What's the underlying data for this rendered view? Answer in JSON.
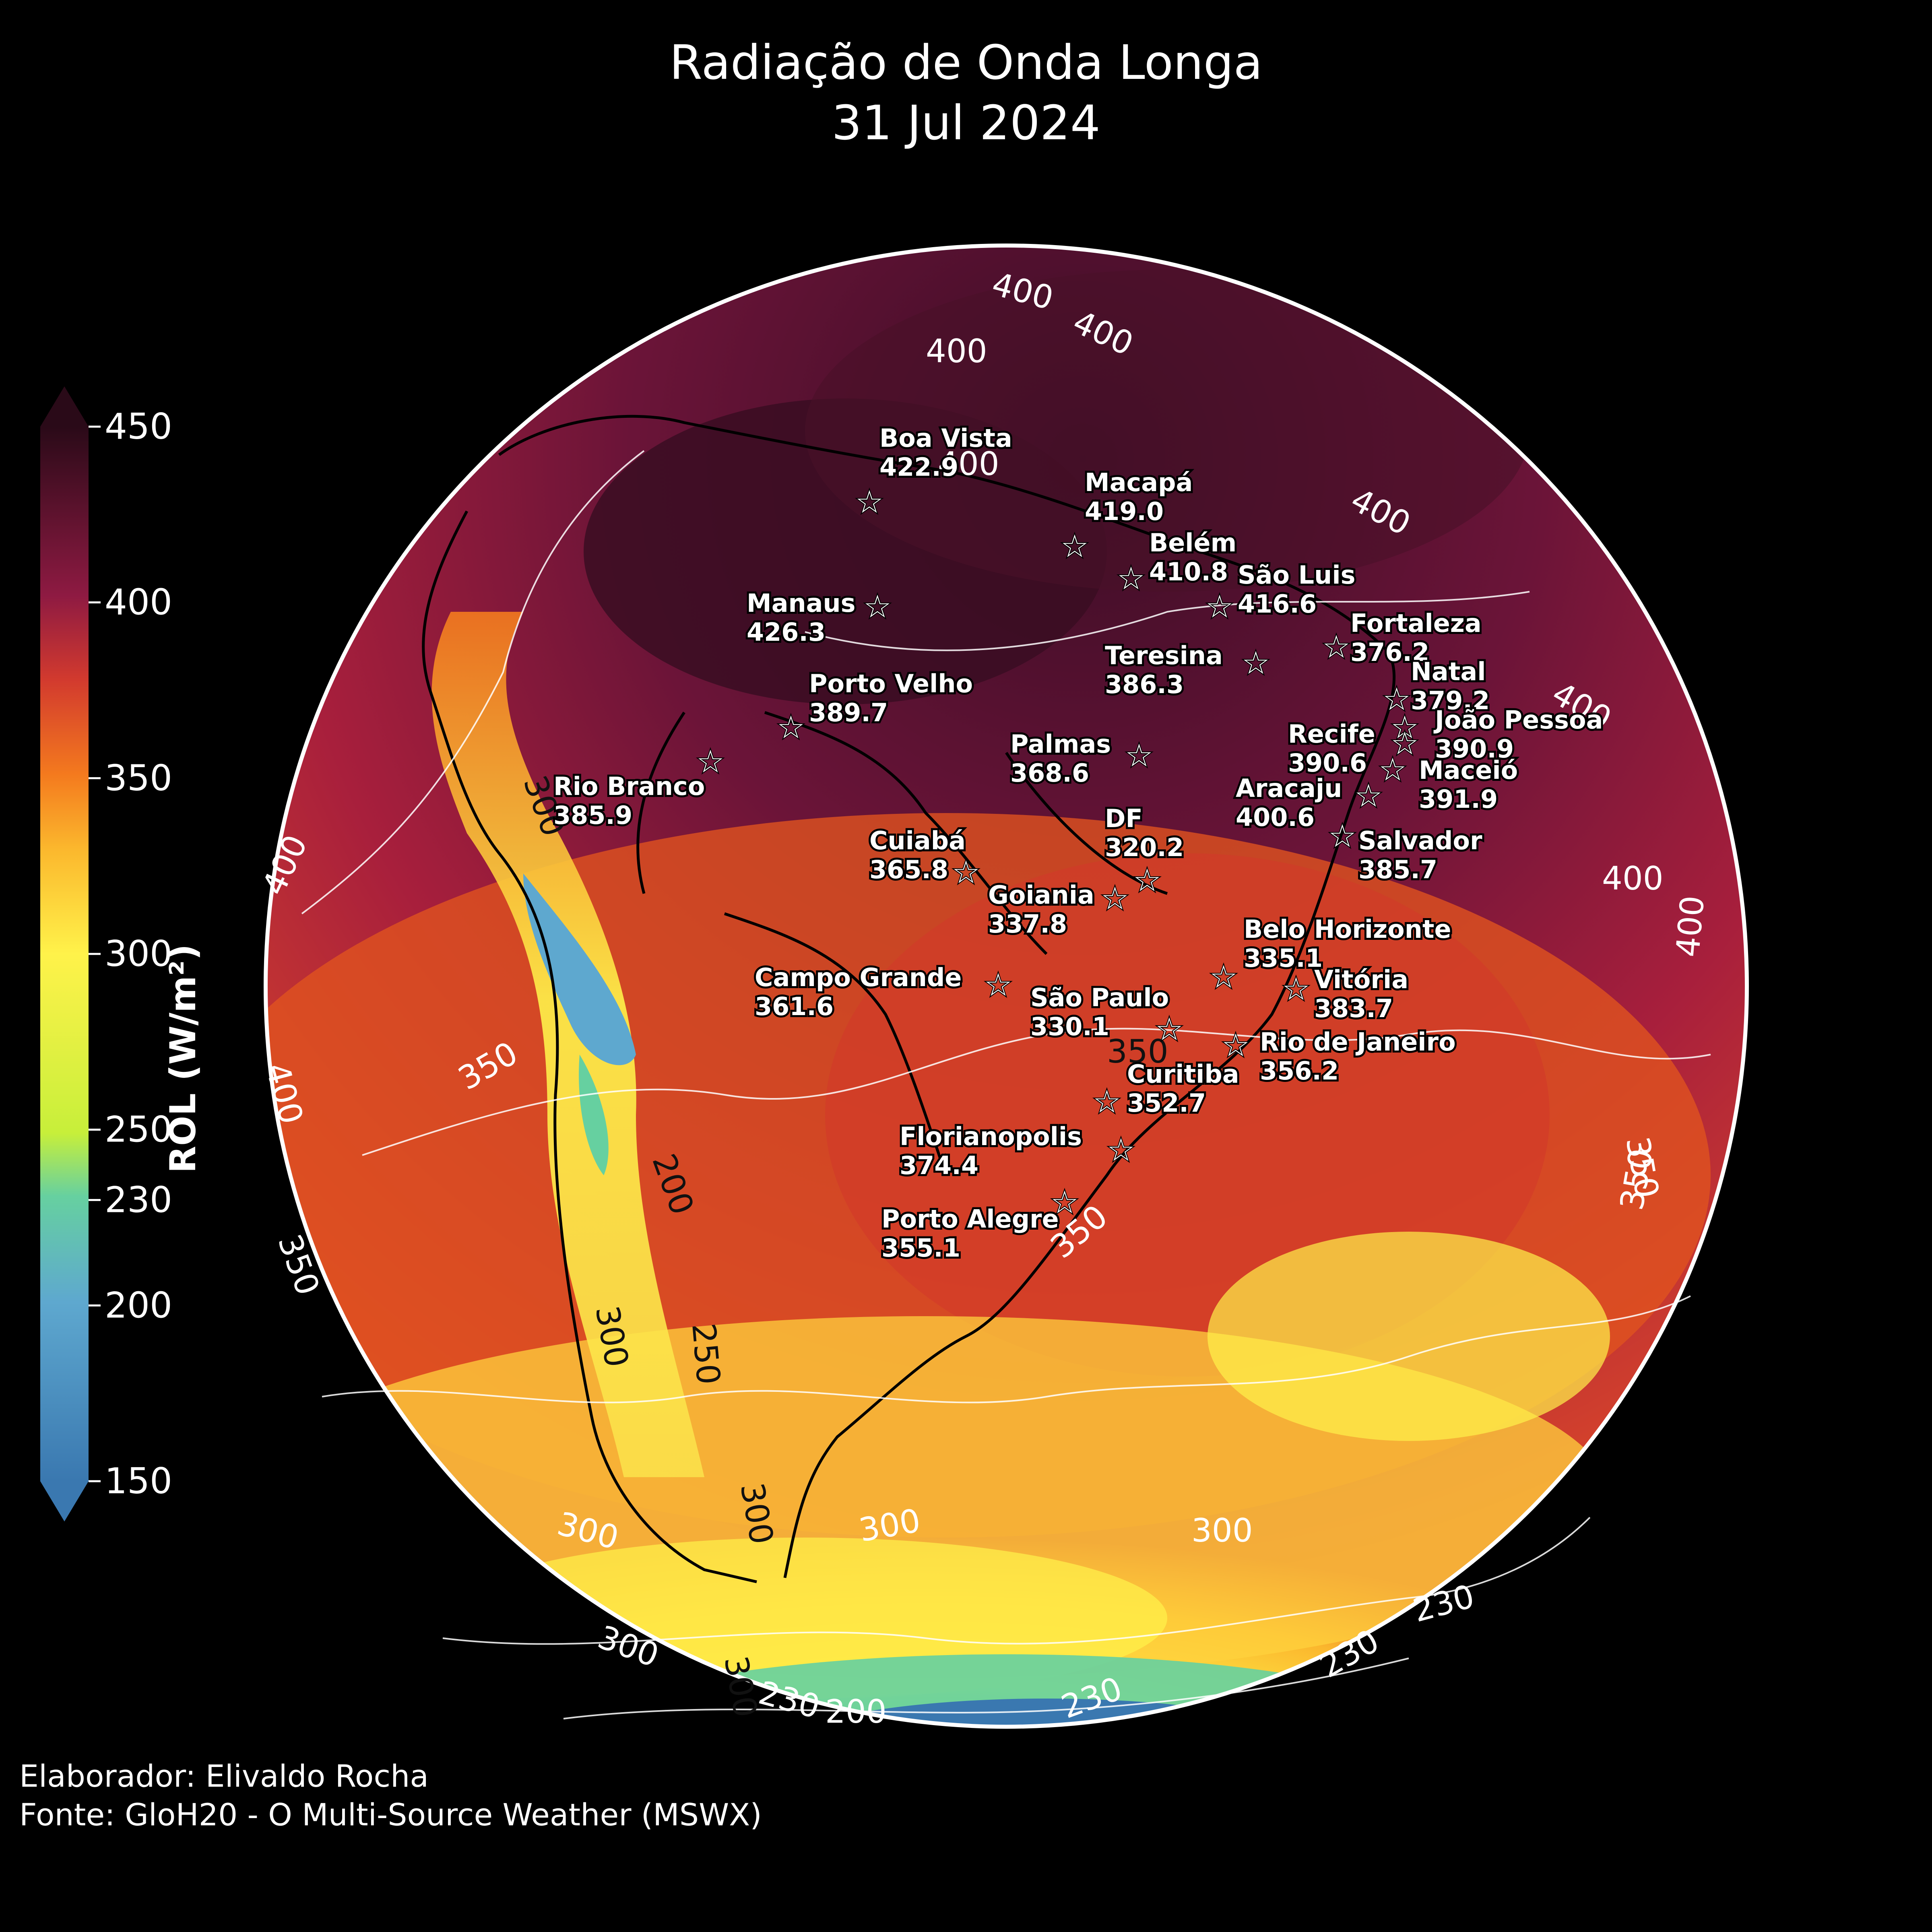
{
  "title": {
    "line1": "Radiação de Onda Longa",
    "line2": "31 Jul 2024"
  },
  "credits": {
    "author": "Elaborador: Elivaldo Rocha",
    "source": "Fonte: GloH20 - O Multi-Source Weather (MSWX)"
  },
  "colorbar": {
    "label": "ROL (W/m²)",
    "ticks": [
      "450",
      "400",
      "350",
      "300",
      "250",
      "230",
      "200",
      "150"
    ],
    "colors": {
      "150": "#3a78b0",
      "200": "#5ea8cf",
      "230": "#66d0a0",
      "250": "#c7ef3a",
      "300": "#fff24a",
      "350": "#f47a1e",
      "400": "#8e1a42",
      "450": "#2a0a18"
    }
  },
  "contour_labels": [
    "400",
    "400",
    "400",
    "400",
    "400",
    "400",
    "400",
    "400",
    "400",
    "400",
    "350",
    "350",
    "350",
    "350",
    "350",
    "300",
    "300",
    "300",
    "300",
    "300",
    "300",
    "300",
    "300",
    "250",
    "230",
    "230",
    "200",
    "200",
    "230",
    "230",
    "350"
  ],
  "cities": [
    {
      "name": "Boa Vista",
      "value": "422.9"
    },
    {
      "name": "Macapá",
      "value": "419.0"
    },
    {
      "name": "Belém",
      "value": "410.8"
    },
    {
      "name": "São Luis",
      "value": "416.6"
    },
    {
      "name": "Manaus",
      "value": "426.3"
    },
    {
      "name": "Fortaleza",
      "value": "376.2"
    },
    {
      "name": "Teresina",
      "value": "386.3"
    },
    {
      "name": "Natal",
      "value": "379.2"
    },
    {
      "name": "Porto Velho",
      "value": "389.7"
    },
    {
      "name": "João Pessoa",
      "value": "390.9"
    },
    {
      "name": "Recife",
      "value": "390.6"
    },
    {
      "name": "Palmas",
      "value": "368.6"
    },
    {
      "name": "Maceió",
      "value": "391.9"
    },
    {
      "name": "Rio Branco",
      "value": "385.9"
    },
    {
      "name": "Aracaju",
      "value": "400.6"
    },
    {
      "name": "DF",
      "value": "320.2"
    },
    {
      "name": "Salvador",
      "value": "385.7"
    },
    {
      "name": "Cuiabá",
      "value": "365.8"
    },
    {
      "name": "Goiania",
      "value": "337.8"
    },
    {
      "name": "Belo Horizonte",
      "value": "335.1"
    },
    {
      "name": "Campo Grande",
      "value": "361.6"
    },
    {
      "name": "Vitória",
      "value": "383.7"
    },
    {
      "name": "São Paulo",
      "value": "330.1"
    },
    {
      "name": "Rio de Janeiro",
      "value": "356.2"
    },
    {
      "name": "Curitiba",
      "value": "352.7"
    },
    {
      "name": "Florianopolis",
      "value": "374.4"
    },
    {
      "name": "Porto Alegre",
      "value": "355.1"
    }
  ]
}
